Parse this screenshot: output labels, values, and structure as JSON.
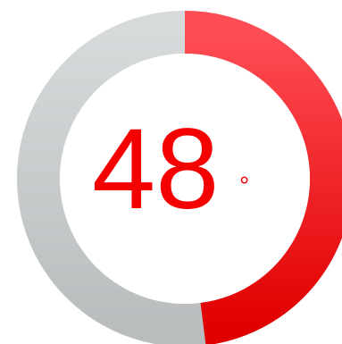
{
  "gauge": {
    "value": "48",
    "unit": "°",
    "progress_percent": 48,
    "colors": {
      "track_top": "#d6dadb",
      "track_bottom": "#b9bdbe",
      "fill_top": "#ff4d55",
      "fill_bottom": "#e10000",
      "text": "#f40000",
      "background": "#ffffff"
    }
  }
}
